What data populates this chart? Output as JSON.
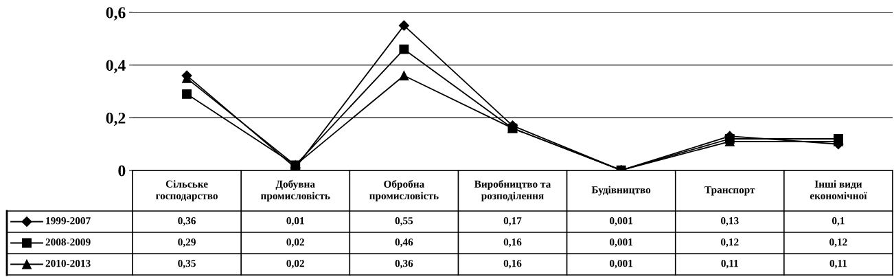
{
  "chart_data": {
    "type": "line",
    "categories": [
      "Сільське\nгосподарство",
      "Добувна\nпромисловість",
      "Обробна\nпромисловість",
      "Виробництво та\nрозподілення",
      "Будівництво",
      "Транспорт",
      "Інші види\nекономічної"
    ],
    "series": [
      {
        "name": "1999-2007",
        "color": "#000000",
        "marker": "diamond",
        "values": [
          0.36,
          0.01,
          0.55,
          0.17,
          0.001,
          0.13,
          0.1
        ],
        "value_labels": [
          "0,36",
          "0,01",
          "0,55",
          "0,17",
          "0,001",
          "0,13",
          "0,1"
        ]
      },
      {
        "name": "2008-2009",
        "color": "#000000",
        "marker": "square",
        "values": [
          0.29,
          0.02,
          0.46,
          0.16,
          0.001,
          0.12,
          0.12
        ],
        "value_labels": [
          "0,29",
          "0,02",
          "0,46",
          "0,16",
          "0,001",
          "0,12",
          "0,12"
        ]
      },
      {
        "name": "2010-2013",
        "color": "#000000",
        "marker": "triangle",
        "values": [
          0.35,
          0.02,
          0.36,
          0.16,
          0.001,
          0.11,
          0.11
        ],
        "value_labels": [
          "0,35",
          "0,02",
          "0,36",
          "0,16",
          "0,001",
          "0,11",
          "0,11"
        ]
      }
    ],
    "ylim": [
      0,
      0.6
    ],
    "yticks": [
      {
        "value": 0,
        "label": "0"
      },
      {
        "value": 0.2,
        "label": "0,2"
      },
      {
        "value": 0.4,
        "label": "0,4"
      },
      {
        "value": 0.6,
        "label": "0,6"
      }
    ],
    "grid": "y",
    "legend": "bottom left",
    "line_style": "solid"
  }
}
